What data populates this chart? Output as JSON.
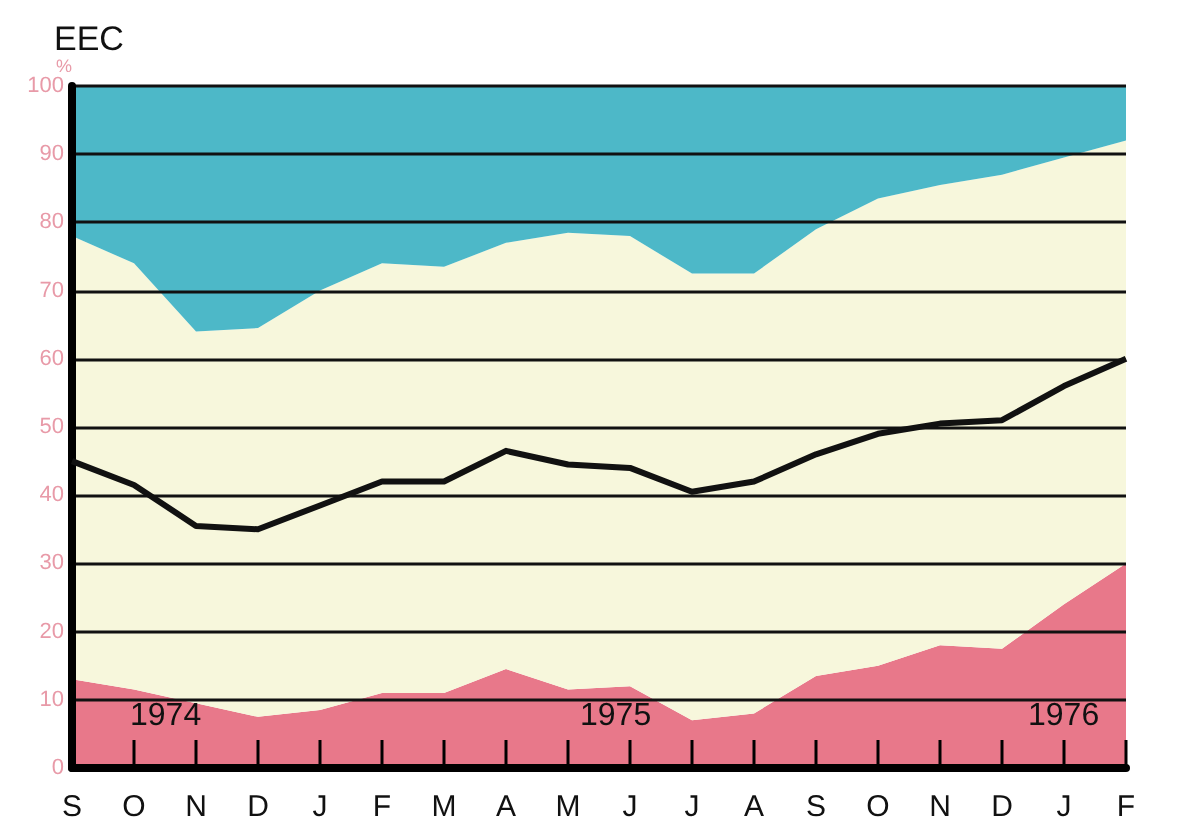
{
  "chart_data": {
    "type": "area",
    "title": "EEC",
    "ylabel": "%",
    "stacked": true,
    "categories": [
      "S",
      "O",
      "N",
      "D",
      "J",
      "F",
      "M",
      "A",
      "M",
      "J",
      "J",
      "A",
      "S",
      "O",
      "N",
      "D",
      "J",
      "F"
    ],
    "series": [
      {
        "color": "#e8788a",
        "values": [
          13,
          11.5,
          9.5,
          7.5,
          8.5,
          11,
          11,
          14.5,
          11.5,
          12,
          7,
          8,
          13.5,
          15,
          18,
          17.5,
          24,
          30
        ]
      },
      {
        "color": "#f7f7dc",
        "values": [
          65,
          62.5,
          54.5,
          57,
          61.5,
          63,
          62.5,
          62.5,
          67,
          66,
          65.5,
          64.5,
          65.5,
          68.5,
          67.5,
          69.5,
          65.5,
          62
        ]
      },
      {
        "color": "#4db8c8",
        "values": [
          22,
          26,
          36,
          35.5,
          30,
          26,
          26.5,
          23,
          21.5,
          22,
          27.5,
          27.5,
          21,
          16.5,
          14.5,
          13,
          10.5,
          8
        ]
      },
      {
        "type": "line",
        "color": "#111111",
        "values": [
          45,
          41.5,
          35.5,
          35,
          38.5,
          42,
          42,
          46.5,
          44.5,
          44,
          40.5,
          42,
          46,
          49,
          50.5,
          51,
          56,
          60
        ]
      }
    ],
    "ylim": [
      0,
      100
    ],
    "yticks": [
      0,
      10,
      20,
      30,
      40,
      50,
      60,
      70,
      80,
      90,
      100
    ],
    "annotations": [
      "1974",
      "1975",
      "1976"
    ],
    "grid": "y",
    "marker": "none",
    "line_style": "solid"
  }
}
